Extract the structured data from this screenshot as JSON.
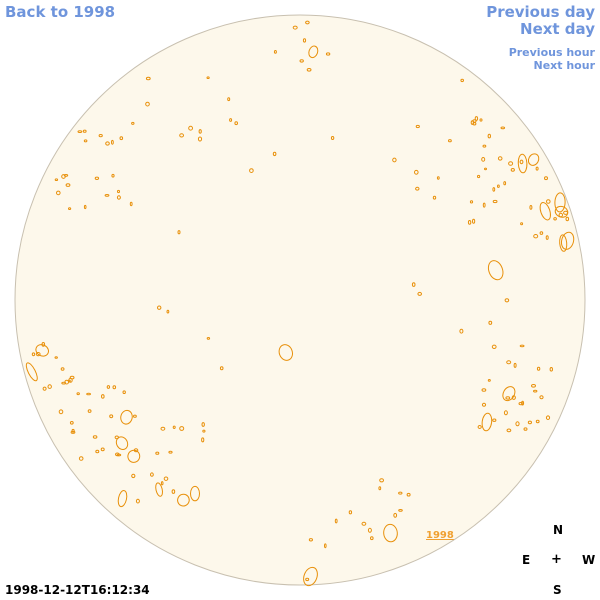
{
  "nav": {
    "back": "Back to 1998",
    "previous_day": "Previous day",
    "next_day": "Next day",
    "previous_hour": "Previous hour",
    "next_hour": "Next hour"
  },
  "timestamp": "1998-12-12T16:12:34",
  "year_link": "1998",
  "compass": {
    "north": "N",
    "east": "E",
    "center": "+",
    "west": "W",
    "south": "S"
  },
  "colors": {
    "disk_fill": "#fdf8eb",
    "disk_edge": "#c8c0b0",
    "contour": "#e8900a",
    "nav": "#6f95dc"
  }
}
